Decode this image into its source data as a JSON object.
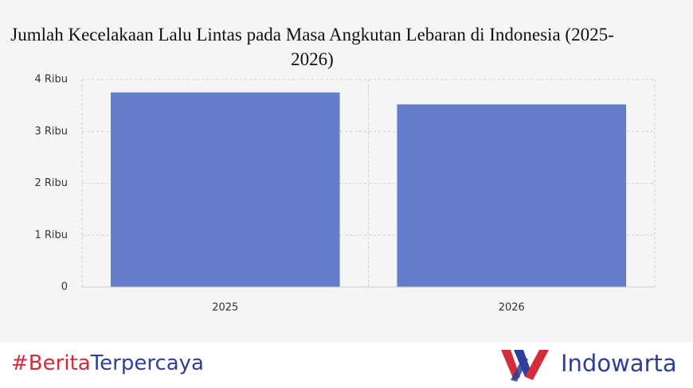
{
  "chart_data": {
    "type": "bar",
    "title": "Jumlah Kecelakaan Lalu Lintas pada Masa Angkutan Lebaran di Indonesia (2025-2026)",
    "categories": [
      "2025",
      "2026"
    ],
    "values": [
      3750,
      3520
    ],
    "color": "#647dcb",
    "ylim": [
      0,
      4000
    ],
    "yticks": [
      0,
      {
        "value": 1000,
        "label": "1 Ribu"
      },
      {
        "value": 2000,
        "label": "2 Ribu"
      },
      {
        "value": 3000,
        "label": "3 Ribu"
      },
      {
        "value": 4000,
        "label": "4 Ribu"
      }
    ],
    "grid": true
  },
  "footer": {
    "hashtag_first": "#Berita",
    "hashtag_second": "Terpercaya",
    "brand": "Indowarta"
  }
}
